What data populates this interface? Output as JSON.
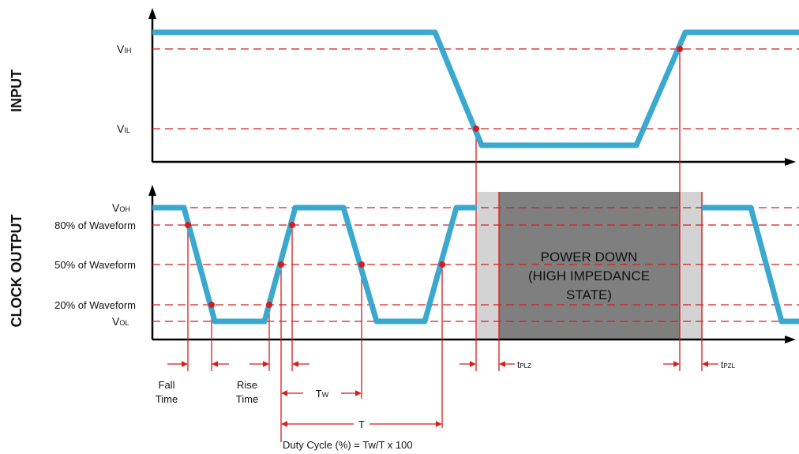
{
  "colors": {
    "waveform": "#3aa8cf",
    "threshold_line": "#d81c1c",
    "marker": "#d81c1c",
    "axis": "#000000",
    "power_down_outer": "#d3d3d3",
    "power_down_inner": "#7f7f7f"
  },
  "rows": {
    "input": "INPUT",
    "clock_output": "CLOCK OUTPUT"
  },
  "input_levels": {
    "vih": {
      "main": "V",
      "sub": "IH"
    },
    "vil": {
      "main": "V",
      "sub": "IL"
    }
  },
  "output_levels": {
    "voh": {
      "main": "V",
      "sub": "OH"
    },
    "p80": "80% of Waveform",
    "p50": "50% of Waveform",
    "p20": "20% of Waveform",
    "vol": {
      "main": "V",
      "sub": "OL"
    }
  },
  "power_down": {
    "line1": "POWER DOWN",
    "line2": "(HIGH IMPEDANCE",
    "line3": "STATE)"
  },
  "timing": {
    "fall_time": [
      "Fall",
      "Time"
    ],
    "rise_time": [
      "Rise",
      "Time"
    ],
    "tw": {
      "main": "T",
      "sub": "W"
    },
    "t": "T",
    "tplz": {
      "main": "t",
      "sub": "PLZ"
    },
    "tpzl": {
      "main": "t",
      "sub": "PZL"
    },
    "duty_cycle": "Duty Cycle (%) = Tw/T x 100"
  }
}
